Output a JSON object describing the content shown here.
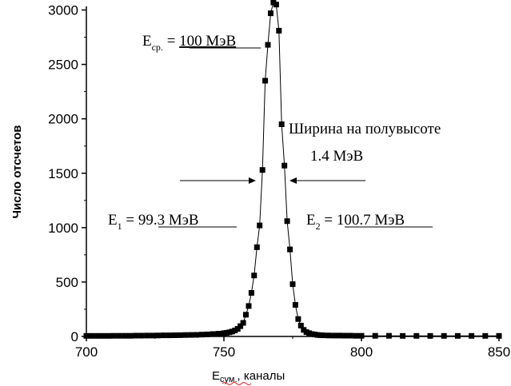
{
  "chart_data": {
    "type": "scatter",
    "title": "",
    "xlabel": "E",
    "xlabel_sub": "сум.",
    "xlabel_suffix": ", каналы",
    "ylabel": "Число отсчетов",
    "xlim": [
      700,
      850
    ],
    "ylim": [
      0,
      3150
    ],
    "x_ticks": [
      700,
      750,
      800,
      850
    ],
    "y_ticks": [
      0,
      500,
      1000,
      1500,
      2000,
      2500,
      3000
    ],
    "x_tick_labels": [
      "700",
      "750",
      "800",
      "850"
    ],
    "y_tick_labels": [
      "0",
      "500",
      "1000",
      "1500",
      "2000",
      "2500",
      "3000"
    ],
    "grid": false,
    "series": [
      {
        "marker": "square",
        "connected": true,
        "x": [
          700,
          702,
          704,
          706,
          708,
          710,
          712,
          714,
          716,
          718,
          720,
          722,
          724,
          726,
          728,
          730,
          732,
          734,
          736,
          738,
          740,
          742,
          744,
          746,
          748,
          750,
          751,
          752,
          753,
          754,
          755,
          756,
          757,
          758,
          759,
          760,
          761,
          762,
          763,
          764,
          765,
          766,
          767,
          768,
          769,
          770,
          771,
          772,
          773,
          774,
          775,
          776,
          777,
          778,
          779,
          780,
          781,
          782,
          783,
          784,
          785,
          786,
          788,
          790,
          792,
          794,
          796,
          798,
          800,
          805,
          810,
          815,
          820,
          825,
          830,
          835,
          840,
          845,
          850
        ],
        "y": [
          5,
          5,
          5,
          5,
          5,
          6,
          6,
          6,
          6,
          7,
          7,
          8,
          8,
          9,
          10,
          10,
          11,
          12,
          13,
          14,
          15,
          17,
          19,
          22,
          26,
          30,
          33,
          38,
          45,
          55,
          70,
          95,
          125,
          200,
          280,
          400,
          560,
          820,
          1020,
          1530,
          2350,
          2680,
          2970,
          3070,
          3050,
          2810,
          1950,
          1570,
          1060,
          800,
          480,
          290,
          160,
          100,
          60,
          40,
          30,
          22,
          18,
          14,
          12,
          10,
          9,
          8,
          8,
          7,
          7,
          6,
          6,
          6,
          6,
          5,
          5,
          5,
          5,
          5,
          5,
          5,
          5
        ]
      }
    ],
    "annotations": {
      "mean_label": "E",
      "mean_sub": "ср.",
      "mean_eq": " = ",
      "mean_value": "100 МэВ",
      "fwhm_line1": "Ширина на полувысоте",
      "fwhm_line2": "1.4 МэВ",
      "e1_label": "E",
      "e1_sub": "1",
      "e1_eq": " = ",
      "e1_value": "99.3 МэВ",
      "e2_label": "E",
      "e2_sub": "2",
      "e2_eq": " = ",
      "e2_value": "100.7 МэВ"
    },
    "colors": {
      "line": "#000000",
      "marker": "#000000",
      "axis": "#000000"
    }
  }
}
